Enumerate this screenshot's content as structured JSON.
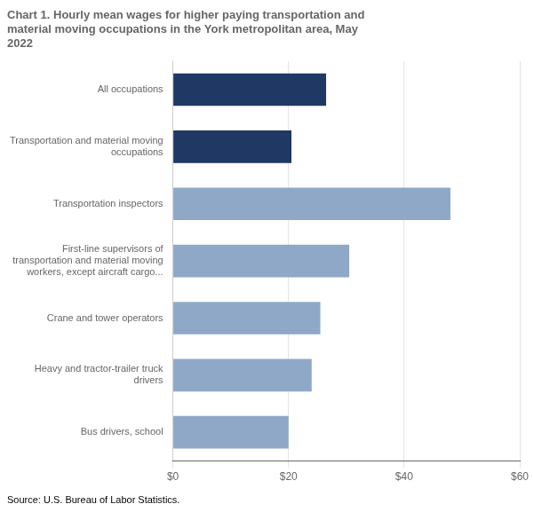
{
  "chart_data": {
    "type": "bar",
    "orientation": "horizontal",
    "title": "Chart 1. Hourly mean wages for higher paying transportation and\nmaterial moving occupations in the York metropolitan area, May\n2022",
    "source": "Source: U.S. Bureau of Labor Statistics.",
    "categories": [
      "Bus drivers, school",
      "Heavy and tractor-trailer truck\ndrivers",
      "Crane and tower operators",
      "First-line supervisors of\ntransportation and material moving\nworkers, except aircraft cargo...",
      "Transportation inspectors",
      "Transportation and material moving\noccupations",
      "All occupations"
    ],
    "values": [
      20.0,
      24.0,
      25.5,
      30.5,
      48.0,
      20.5,
      26.5
    ],
    "colors": [
      "#8fa8c8",
      "#8fa8c8",
      "#8fa8c8",
      "#8fa8c8",
      "#8fa8c8",
      "#1f3864",
      "#1f3864"
    ],
    "xlim": [
      0,
      60
    ],
    "xticks": [
      {
        "value": 0,
        "label": "$0"
      },
      {
        "value": 20,
        "label": "$20"
      },
      {
        "value": 40,
        "label": "$40"
      },
      {
        "value": 60,
        "label": "$60"
      }
    ],
    "grid": true
  }
}
